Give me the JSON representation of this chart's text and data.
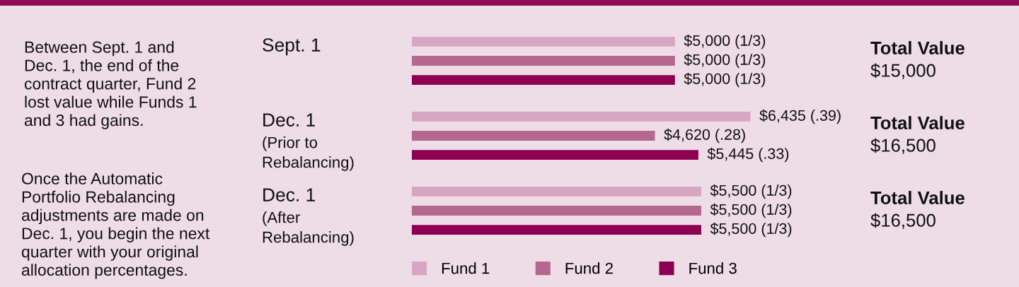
{
  "chart_data": {
    "type": "bar",
    "orientation": "horizontal",
    "categories": [
      "Sept. 1",
      "Dec. 1\n(Prior to\nRebalancing)",
      "Dec. 1\n(After\nRebalancing)"
    ],
    "series": [
      {
        "name": "Fund 1",
        "color": "#d7a6c3",
        "values": [
          5000,
          6435,
          5500
        ],
        "value_labels": [
          "$5,000 (1/3)",
          "$6,435 (.39)",
          "$5,500 (1/3)"
        ]
      },
      {
        "name": "Fund 2",
        "color": "#b5688f",
        "values": [
          5000,
          4620,
          5500
        ],
        "value_labels": [
          "$5,000 (1/3)",
          "$4,620 (.28)",
          "$5,500 (1/3)"
        ]
      },
      {
        "name": "Fund 3",
        "color": "#8e0052",
        "values": [
          5000,
          5445,
          5500
        ],
        "value_labels": [
          "$5,000 (1/3)",
          "$5,445 (.33)",
          "$5,500 (1/3)"
        ]
      }
    ],
    "legend": "bottom",
    "annotations": [
      "Between Sept. 1 and\nDec. 1, the end of the\ncontract quarter, Fund 2\nlost value while Funds 1\nand 3 had gains.",
      "Once the Automatic\nPortfolio Rebalancing\nadjustments are made on\nDec. 1, you begin the next\nquarter with your original\nallocation percentages.",
      "Total Value\n$15,000",
      "Total Value\n$16,500",
      "Total Value\n$16,500"
    ]
  }
}
